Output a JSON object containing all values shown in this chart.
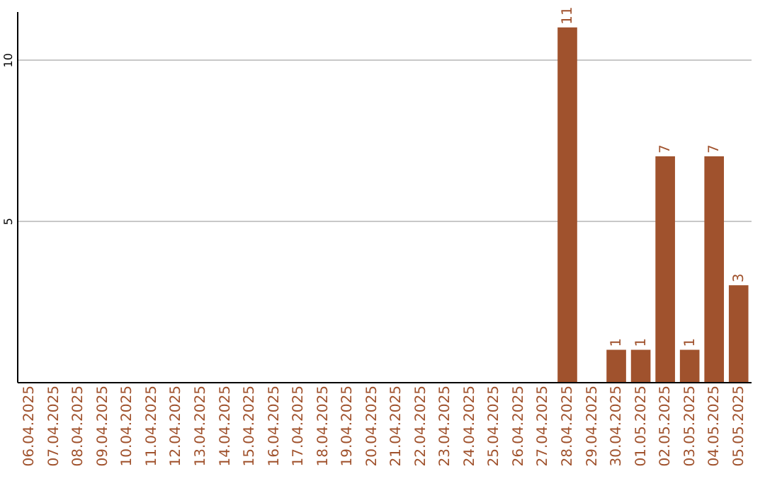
{
  "chart_data": {
    "type": "bar",
    "categories": [
      "06.04.2025",
      "07.04.2025",
      "08.04.2025",
      "09.04.2025",
      "10.04.2025",
      "11.04.2025",
      "12.04.2025",
      "13.04.2025",
      "14.04.2025",
      "15.04.2025",
      "16.04.2025",
      "17.04.2025",
      "18.04.2025",
      "19.04.2025",
      "20.04.2025",
      "21.04.2025",
      "22.04.2025",
      "23.04.2025",
      "24.04.2025",
      "25.04.2025",
      "26.04.2025",
      "27.04.2025",
      "28.04.2025",
      "29.04.2025",
      "30.04.2025",
      "01.05.2025",
      "02.05.2025",
      "03.05.2025",
      "04.05.2025",
      "05.05.2025"
    ],
    "values": [
      0,
      0,
      0,
      0,
      0,
      0,
      0,
      0,
      0,
      0,
      0,
      0,
      0,
      0,
      0,
      0,
      0,
      0,
      0,
      0,
      0,
      0,
      11,
      0,
      1,
      1,
      7,
      1,
      7,
      3
    ],
    "value_labels": [
      null,
      null,
      null,
      null,
      null,
      null,
      null,
      null,
      null,
      null,
      null,
      null,
      null,
      null,
      null,
      null,
      null,
      null,
      null,
      null,
      null,
      null,
      "11",
      null,
      "1",
      "1",
      "7",
      "1",
      "7",
      "3"
    ],
    "color": "#a0522d",
    "ylim": [
      0,
      11.5
    ],
    "yticks": [
      5,
      10
    ],
    "grid": "y"
  }
}
